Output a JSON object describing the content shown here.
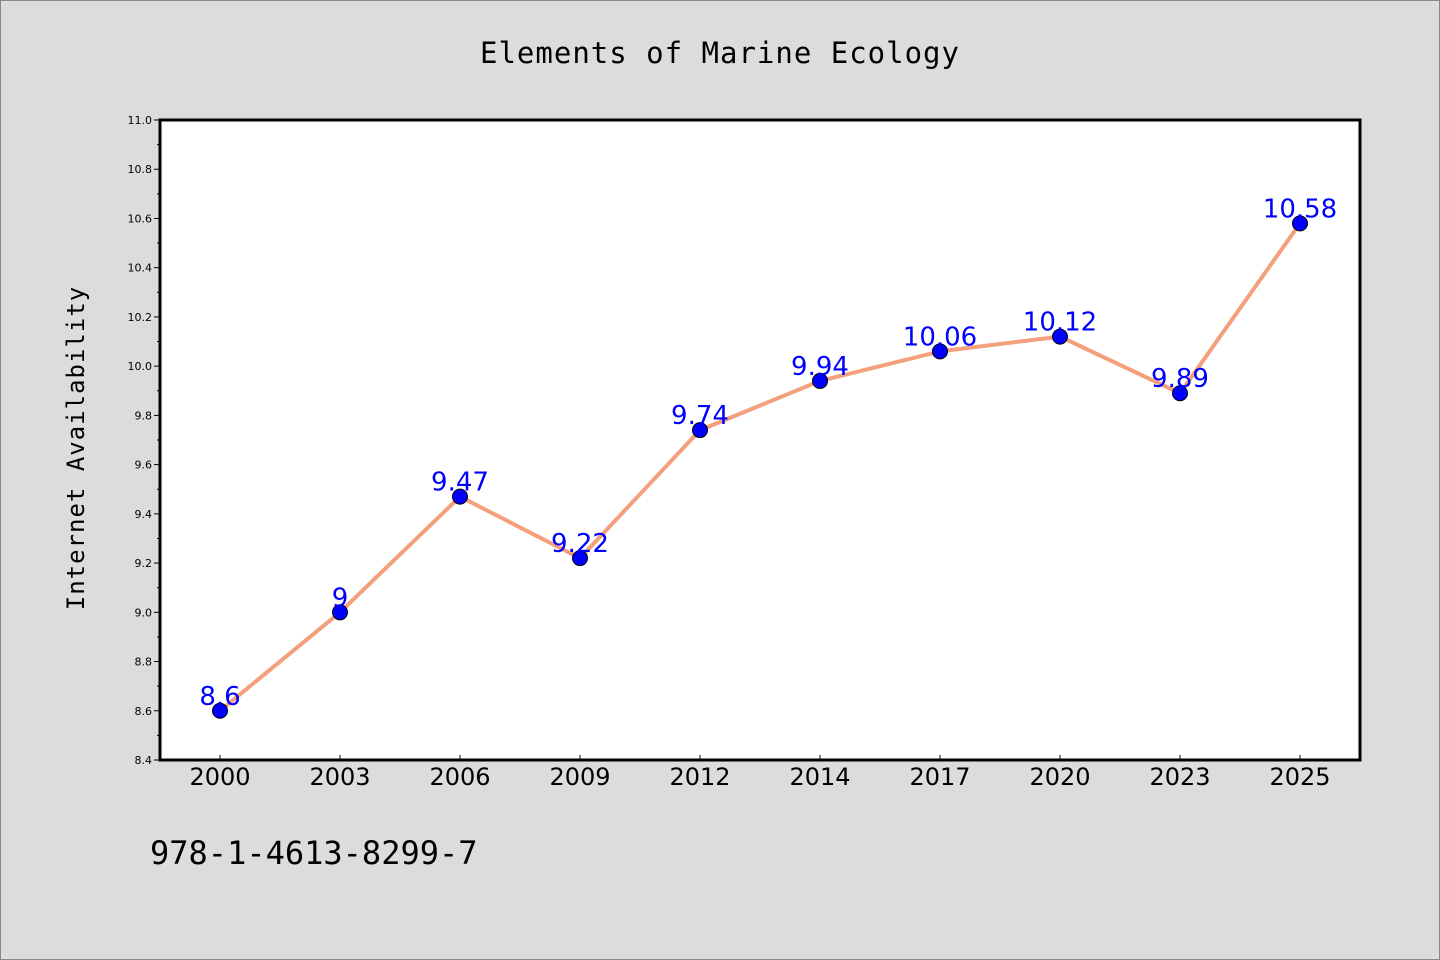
{
  "chart_data": {
    "type": "line",
    "title": "Elements of Marine Ecology",
    "xlabel": "",
    "ylabel": "Internet Availability",
    "categories": [
      "2000",
      "2003",
      "2006",
      "2009",
      "2012",
      "2014",
      "2017",
      "2020",
      "2023",
      "2025"
    ],
    "series": [
      {
        "values": [
          8.6,
          9,
          9.47,
          9.22,
          9.74,
          9.94,
          10.06,
          10.12,
          9.89,
          10.58
        ],
        "data_labels": [
          "8.6",
          "9",
          "9.47",
          "9.22",
          "9.74",
          "9.94",
          "10.06",
          "10.12",
          "9.89",
          "10.58"
        ],
        "line_color": "#f4a07c",
        "marker_color": "#0000ff",
        "label_color": "#0000ff"
      }
    ],
    "ylim": [
      8.4,
      11.0
    ],
    "yticks": [
      "8.4",
      "8.6",
      "8.8",
      "9.0",
      "9.2",
      "9.4",
      "9.6",
      "9.8",
      "10.0",
      "10.2",
      "10.4",
      "10.6",
      "10.8",
      "11.0"
    ],
    "grid": false,
    "legend": "none",
    "background_color": "#dcdcdc",
    "plot_background_color": "#ffffff"
  },
  "footer": {
    "isbn": "978-1-4613-8299-7"
  }
}
